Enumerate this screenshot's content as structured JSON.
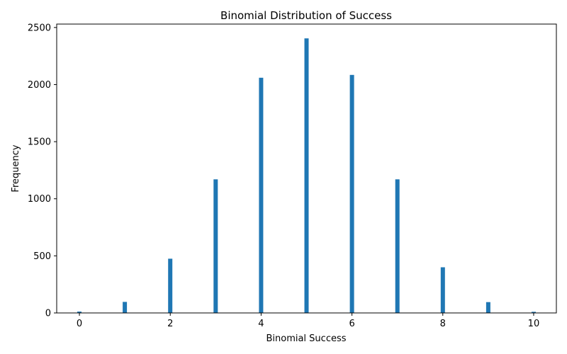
{
  "chart_data": {
    "type": "bar",
    "title": "Binomial Distribution of Success",
    "xlabel": "Binomial Success",
    "ylabel": "Frequency",
    "x": [
      0,
      1,
      2,
      3,
      4,
      5,
      6,
      7,
      8,
      9,
      10
    ],
    "values": [
      12,
      97,
      475,
      1170,
      2060,
      2405,
      2085,
      1170,
      400,
      95,
      10
    ],
    "xlim": [
      -0.5,
      10.5
    ],
    "ylim": [
      0,
      2530
    ],
    "xticks": [
      0,
      2,
      4,
      6,
      8,
      10
    ],
    "yticks": [
      0,
      500,
      1000,
      1500,
      2000,
      2500
    ],
    "bar_color": "#1f77b4",
    "grid": false,
    "legend": "none"
  }
}
